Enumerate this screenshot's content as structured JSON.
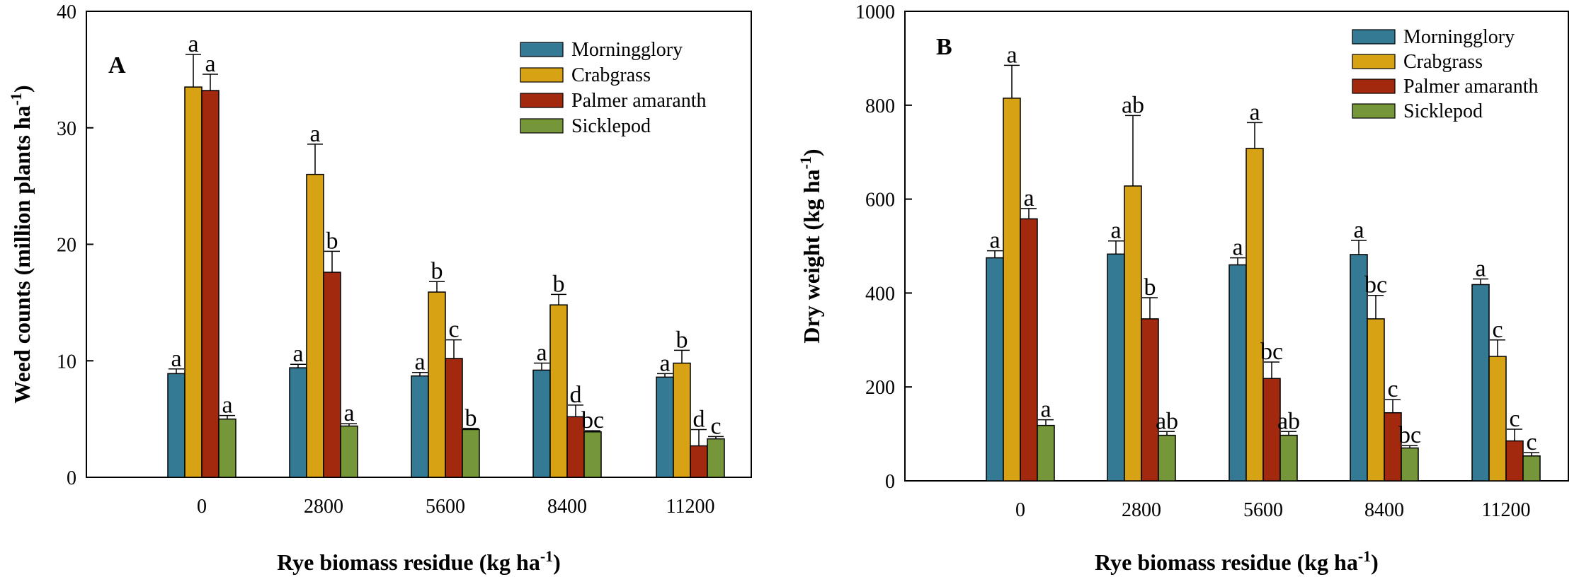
{
  "colors": {
    "Morningglory": "#357a95",
    "Crabgrass": "#d8a215",
    "Palmer amaranth": "#a3290e",
    "Sicklepod": "#76963a"
  },
  "chart_data": [
    {
      "type": "bar",
      "panel": "A",
      "title": "",
      "categories": [
        "0",
        "2800",
        "5600",
        "8400",
        "11200"
      ],
      "xlabel": "Rye biomass residue (kg ha",
      "xlabel_sup": "-1",
      "xlabel_end": ")",
      "ylabel": "Weed counts (million plants ha",
      "ylabel_sup": "-1",
      "ylabel_end": ")",
      "ylim": [
        0,
        40
      ],
      "yticks": [
        "0",
        "10",
        "20",
        "30",
        "40"
      ],
      "legend_position": "top-right",
      "series": [
        {
          "name": "Morningglory",
          "values": [
            8.9,
            9.4,
            8.7,
            9.2,
            8.6
          ],
          "errors": [
            0.4,
            0.3,
            0.3,
            0.6,
            0.3
          ],
          "letters": [
            "a",
            "a",
            "a",
            "a",
            "a"
          ]
        },
        {
          "name": "Crabgrass",
          "values": [
            33.5,
            26.0,
            15.9,
            14.8,
            9.8
          ],
          "errors": [
            2.8,
            2.6,
            0.9,
            0.9,
            1.1
          ],
          "letters": [
            "a",
            "a",
            "b",
            "b",
            "b"
          ]
        },
        {
          "name": "Palmer amaranth",
          "values": [
            33.2,
            17.6,
            10.2,
            5.2,
            2.7
          ],
          "errors": [
            1.4,
            1.8,
            1.6,
            1.0,
            1.4
          ],
          "letters": [
            "a",
            "b",
            "c",
            "d",
            "d"
          ]
        },
        {
          "name": "Sicklepod",
          "values": [
            5.0,
            4.4,
            4.1,
            3.9,
            3.3
          ],
          "errors": [
            0.3,
            0.2,
            0.1,
            0.1,
            0.2
          ],
          "letters": [
            "a",
            "a",
            "b",
            "bc",
            "c"
          ]
        }
      ]
    },
    {
      "type": "bar",
      "panel": "B",
      "title": "",
      "categories": [
        "0",
        "2800",
        "5600",
        "8400",
        "11200"
      ],
      "xlabel": "Rye biomass residue (kg ha",
      "xlabel_sup": "-1",
      "xlabel_end": ")",
      "ylabel": "Dry weight (kg ha",
      "ylabel_sup": "-1",
      "ylabel_end": ")",
      "ylim": [
        0,
        1000
      ],
      "yticks": [
        "0",
        "200",
        "400",
        "600",
        "800",
        "1000"
      ],
      "legend_position": "top-right",
      "series": [
        {
          "name": "Morningglory",
          "values": [
            475,
            483,
            460,
            482,
            418
          ],
          "errors": [
            15,
            28,
            15,
            30,
            12
          ],
          "letters": [
            "a",
            "a",
            "a",
            "a",
            "a"
          ]
        },
        {
          "name": "Crabgrass",
          "values": [
            815,
            628,
            708,
            345,
            265
          ],
          "errors": [
            70,
            150,
            55,
            50,
            35
          ],
          "letters": [
            "a",
            "ab",
            "a",
            "bc",
            "c"
          ]
        },
        {
          "name": "Palmer amaranth",
          "values": [
            558,
            345,
            218,
            145,
            85
          ],
          "errors": [
            22,
            45,
            35,
            28,
            25
          ],
          "letters": [
            "a",
            "b",
            "bc",
            "c",
            "c"
          ]
        },
        {
          "name": "Sicklepod",
          "values": [
            118,
            97,
            97,
            70,
            53
          ],
          "errors": [
            12,
            8,
            8,
            5,
            7
          ],
          "letters": [
            "a",
            "ab",
            "ab",
            "bc",
            "c"
          ]
        }
      ]
    }
  ]
}
